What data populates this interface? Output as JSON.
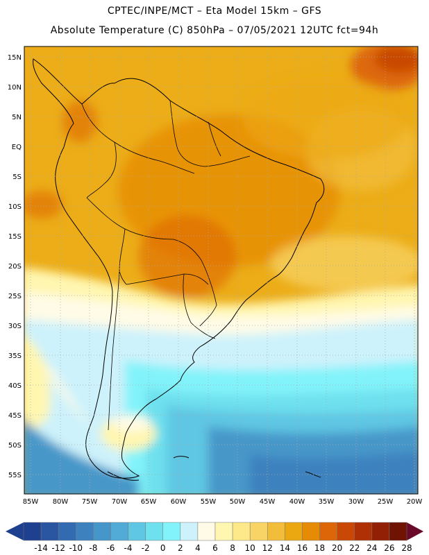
{
  "header": {
    "line1": "CPTEC/INPE/MCT –  Eta Model 15km – GFS",
    "line2": "Absolute Temperature (C) 850hPa – 07/05/2021 12UTC fct=94h"
  },
  "axes": {
    "lat_labels": [
      "15N",
      "10N",
      "5N",
      "EQ",
      "5S",
      "10S",
      "15S",
      "20S",
      "25S",
      "30S",
      "35S",
      "40S",
      "45S",
      "50S",
      "55S"
    ],
    "lon_labels": [
      "85W",
      "80W",
      "75W",
      "70W",
      "65W",
      "60W",
      "55W",
      "50W",
      "45W",
      "40W",
      "35W",
      "30W",
      "25W",
      "20W"
    ]
  },
  "colorbar": {
    "ticks": [
      "-14",
      "-12",
      "-10",
      "-8",
      "-6",
      "-4",
      "-2",
      "0",
      "2",
      "4",
      "6",
      "8",
      "10",
      "12",
      "14",
      "16",
      "18",
      "20",
      "22",
      "24",
      "26",
      "28"
    ],
    "colors": [
      "#1f3f8f",
      "#2a55a0",
      "#336bb2",
      "#3d82bf",
      "#4697c9",
      "#51abd6",
      "#5fc6e3",
      "#6ee0ee",
      "#82f3fa",
      "#cdf2fb",
      "#fffbe6",
      "#fff6b0",
      "#fde98a",
      "#f8d466",
      "#f2bd3a",
      "#eca810",
      "#e58b05",
      "#dd6708",
      "#c94805",
      "#b03005",
      "#922005",
      "#6f1405"
    ]
  }
}
